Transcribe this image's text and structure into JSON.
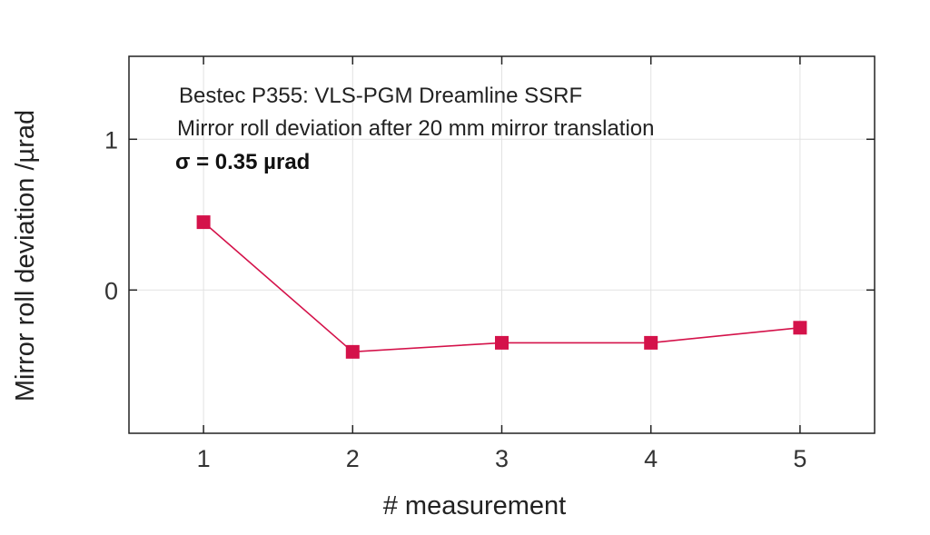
{
  "chart_data": {
    "type": "line",
    "x": [
      1,
      2,
      3,
      4,
      5
    ],
    "series": [
      {
        "values": [
          0.45,
          -0.41,
          -0.35,
          -0.35,
          -0.25
        ],
        "color": "#d4124a",
        "marker": "square"
      }
    ],
    "xlabel": "# measurement",
    "ylabel": "Mirror roll deviation /µrad",
    "xlim": [
      0.5,
      5.5
    ],
    "ylim": [
      -0.95,
      1.55
    ],
    "xticks": [
      "1",
      "2",
      "3",
      "4",
      "5"
    ],
    "yticks": [
      "0",
      "1"
    ],
    "grid": true,
    "annotations": [
      "Bestec P355: VLS-PGM Dreamline SSRF",
      "Mirror roll deviation after 20 mm mirror translation",
      "σ  = 0.35 µrad"
    ]
  }
}
